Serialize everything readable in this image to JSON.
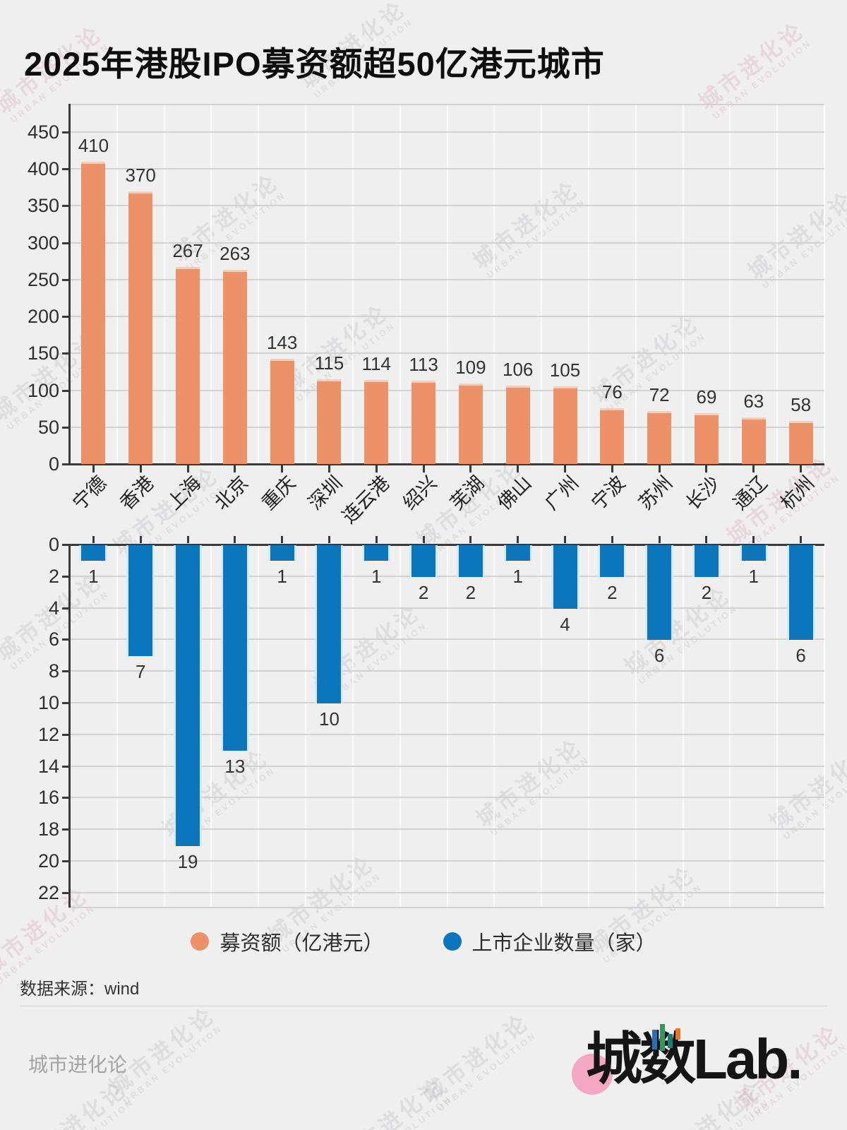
{
  "title": "2025年港股IPO募资额超50亿港元城市",
  "source": "数据来源：wind",
  "watermark": {
    "line1": "城市进化论",
    "line2": "URBAN EVOLUTION"
  },
  "footer": {
    "brand_text": "城市进化论",
    "logo_cn": "城数",
    "logo_latin": "Lab."
  },
  "colors": {
    "background": "#efeff0",
    "fundraise_bar": "#ec9168",
    "count_bar": "#0b76bc",
    "axis": "#3a3a3a",
    "logo_circle_pink": "#f3a7c2"
  },
  "legend": [
    {
      "label": "募资额（亿港元）",
      "color": "#ec9168"
    },
    {
      "label": "上市企业数量（家）",
      "color": "#0b76bc"
    }
  ],
  "chart_data": {
    "type": "bar",
    "title": "2025年港股IPO募资额超50亿港元城市",
    "categories": [
      "宁德",
      "香港",
      "上海",
      "北京",
      "重庆",
      "深圳",
      "连云港",
      "绍兴",
      "芜湖",
      "佛山",
      "广州",
      "宁波",
      "苏州",
      "长沙",
      "通辽",
      "杭州"
    ],
    "series": [
      {
        "name": "募资额（亿港元）",
        "color": "#ec9168",
        "orientation": "up",
        "values": [
          410,
          370,
          267,
          263,
          143,
          115,
          114,
          113,
          109,
          106,
          105,
          76,
          72,
          69,
          63,
          58
        ],
        "ylim": [
          0,
          450
        ],
        "ytick_step": 50
      },
      {
        "name": "上市企业数量（家）",
        "color": "#0b76bc",
        "orientation": "down-inverted",
        "values": [
          1,
          7,
          19,
          13,
          1,
          10,
          1,
          2,
          2,
          1,
          4,
          2,
          6,
          2,
          1,
          6
        ],
        "ylim": [
          0,
          22
        ],
        "ytick_step": 2
      }
    ],
    "grid": true,
    "legend_position": "bottom",
    "value_labels": true
  }
}
